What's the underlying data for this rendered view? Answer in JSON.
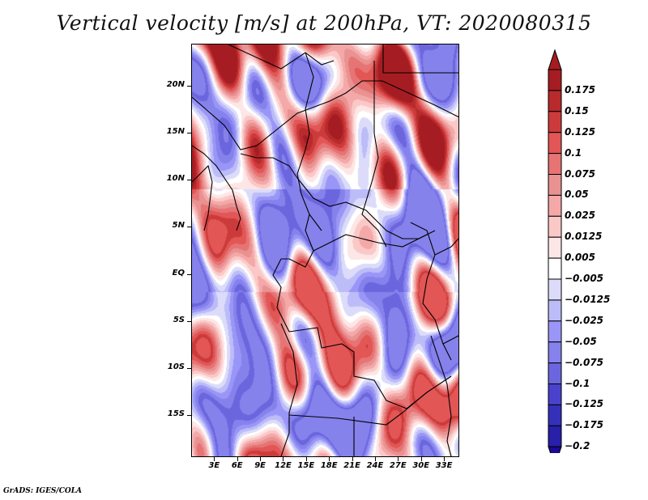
{
  "title": "Vertical velocity [m/s] at 200hPa, VT: 2020080315",
  "footer": "GrADS: IGES/COLA",
  "map": {
    "variable": "Vertical velocity",
    "units": "m/s",
    "level": "200hPa",
    "valid_time": "2020080315",
    "lat_labels": [
      "20N",
      "15N",
      "10N",
      "5N",
      "EQ",
      "5S",
      "10S",
      "15S"
    ],
    "lat_values": [
      20,
      15,
      10,
      5,
      0,
      -5,
      -10,
      -15
    ],
    "lon_labels": [
      "3E",
      "6E",
      "9E",
      "12E",
      "15E",
      "18E",
      "21E",
      "24E",
      "27E",
      "30E",
      "33E"
    ],
    "lon_values": [
      3,
      6,
      9,
      12,
      15,
      18,
      21,
      24,
      27,
      30,
      33
    ],
    "lat_range": [
      -19.5,
      24.5
    ],
    "lon_range": [
      0,
      35
    ]
  },
  "colorbar": {
    "labels": [
      "0.175",
      "0.15",
      "0.125",
      "0.1",
      "0.075",
      "0.05",
      "0.025",
      "0.0125",
      "0.005",
      "−0.005",
      "−0.0125",
      "−0.025",
      "−0.05",
      "−0.075",
      "−0.1",
      "−0.125",
      "−0.175",
      "−0.2"
    ],
    "colors": [
      "#a51d22",
      "#b82a2c",
      "#cc3b3b",
      "#e25656",
      "#e67474",
      "#e89292",
      "#f4a8a8",
      "#fbc8c8",
      "#fde6e6",
      "#ffffff",
      "#dcdcfa",
      "#bcbcf8",
      "#9a96f8",
      "#8582ec",
      "#6c66de",
      "#4a42cc",
      "#3530ba",
      "#2820a8",
      "#1c0a96"
    ],
    "top_arrow_color": "#a51d22",
    "bottom_arrow_color": "#1c0a96"
  }
}
